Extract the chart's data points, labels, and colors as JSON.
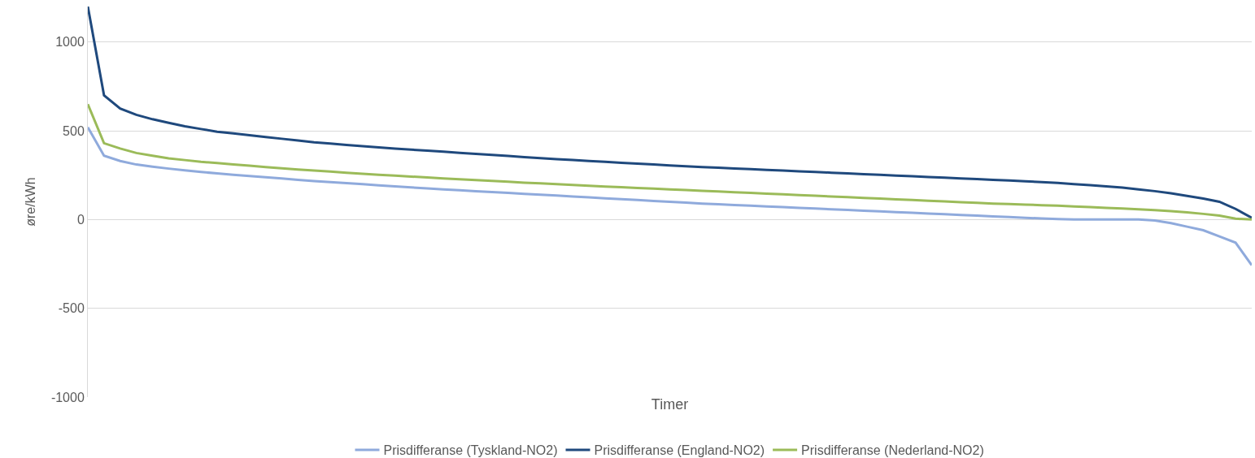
{
  "chart_data": {
    "type": "line",
    "xlabel": "Timer",
    "ylabel": "øre/kWh",
    "categories": [
      null,
      null,
      null,
      null,
      null,
      null,
      null,
      null,
      null,
      null,
      null,
      null,
      null,
      null,
      null,
      null,
      null,
      null,
      null,
      null,
      null,
      null,
      null,
      null,
      null,
      null,
      null,
      null,
      null,
      null,
      null,
      null,
      null,
      null,
      null,
      null,
      null,
      null,
      null,
      null,
      null,
      null,
      null,
      null,
      null,
      null,
      null,
      null,
      null,
      null,
      null,
      null,
      null,
      null,
      null,
      null,
      null,
      null,
      null,
      null,
      null,
      null,
      null,
      null,
      null,
      null,
      null,
      null,
      null,
      null,
      null,
      null,
      null
    ],
    "ylim": [
      -1000,
      1200
    ],
    "yticks": [
      -1000,
      -500,
      0,
      500,
      1000
    ],
    "grid": "y",
    "legend": "bottom",
    "tick_labels": "y",
    "marker": "none",
    "line_style": "solid",
    "series": [
      {
        "name": "Prisdifferanse (Tyskland-NO2)",
        "color": "#8faadc",
        "values": [
          520,
          360,
          330,
          310,
          298,
          287,
          277,
          268,
          260,
          252,
          245,
          238,
          231,
          224,
          217,
          211,
          205,
          199,
          193,
          187,
          181,
          175,
          170,
          165,
          160,
          155,
          150,
          145,
          140,
          135,
          130,
          125,
          120,
          115,
          110,
          105,
          100,
          95,
          90,
          86,
          82,
          78,
          74,
          70,
          66,
          62,
          58,
          54,
          50,
          46,
          42,
          38,
          34,
          30,
          26,
          22,
          18,
          14,
          10,
          6,
          3,
          1,
          0,
          0,
          0,
          0,
          -5,
          -20,
          -40,
          -60,
          -95,
          -130,
          -257
        ]
      },
      {
        "name": "Prisdifferanse (England-NO2)",
        "color": "#1f497d",
        "values": [
          1200,
          700,
          625,
          590,
          565,
          545,
          525,
          510,
          495,
          485,
          475,
          465,
          455,
          445,
          435,
          428,
          420,
          413,
          406,
          400,
          394,
          388,
          382,
          376,
          370,
          364,
          358,
          352,
          346,
          340,
          335,
          330,
          325,
          320,
          315,
          310,
          305,
          300,
          296,
          292,
          288,
          284,
          280,
          276,
          272,
          268,
          264,
          260,
          256,
          252,
          248,
          244,
          240,
          236,
          232,
          228,
          224,
          220,
          216,
          211,
          206,
          200,
          194,
          187,
          180,
          170,
          160,
          148,
          133,
          118,
          100,
          60,
          10
        ]
      },
      {
        "name": "Prisdifferanse (Nederland-NO2)",
        "color": "#9bbb59",
        "values": [
          650,
          430,
          400,
          375,
          360,
          345,
          335,
          325,
          318,
          310,
          303,
          296,
          289,
          282,
          276,
          270,
          264,
          258,
          252,
          247,
          242,
          237,
          232,
          227,
          222,
          218,
          213,
          208,
          204,
          199,
          195,
          190,
          186,
          182,
          178,
          174,
          170,
          166,
          162,
          158,
          154,
          150,
          146,
          142,
          138,
          134,
          130,
          126,
          122,
          118,
          114,
          110,
          106,
          102,
          98,
          94,
          90,
          87,
          84,
          81,
          78,
          74,
          70,
          66,
          62,
          58,
          53,
          47,
          40,
          32,
          22,
          5,
          0
        ]
      }
    ]
  }
}
